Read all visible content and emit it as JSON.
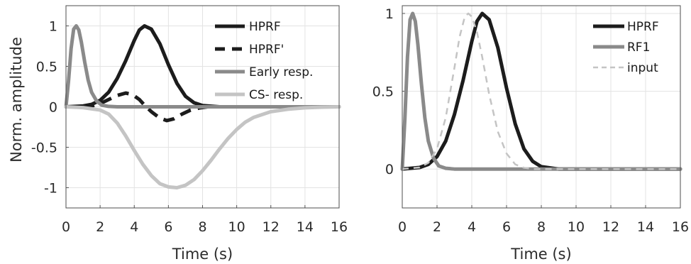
{
  "chart_data": [
    {
      "type": "line",
      "xlabel": "Time (s)",
      "ylabel": "Norm. amplitude",
      "xlim": [
        0,
        16
      ],
      "ylim": [
        -1.25,
        1.25
      ],
      "xticks": [
        "0",
        "2",
        "4",
        "6",
        "8",
        "10",
        "12",
        "14",
        "16"
      ],
      "yticks": [
        "-1",
        "-0.5",
        "0",
        "0.5",
        "1"
      ],
      "grid": true,
      "legend_position": "top-right",
      "series": [
        {
          "name": "HPRF",
          "color": "#1c1c1c",
          "dash": "solid",
          "x": [
            0,
            1,
            1.5,
            2,
            2.5,
            3,
            3.5,
            4,
            4.3,
            4.6,
            5,
            5.5,
            6,
            6.5,
            7,
            7.5,
            8,
            9,
            10,
            16
          ],
          "y": [
            0,
            0.01,
            0.03,
            0.08,
            0.18,
            0.35,
            0.57,
            0.82,
            0.95,
            1.0,
            0.96,
            0.78,
            0.52,
            0.29,
            0.13,
            0.05,
            0.015,
            0,
            0,
            0
          ]
        },
        {
          "name": "HPRF'",
          "color": "#1c1c1c",
          "dash": "dashed",
          "x": [
            1.0,
            1.5,
            2,
            2.5,
            3,
            3.5,
            3.9,
            4.3,
            4.6,
            5,
            5.5,
            5.9,
            6.3,
            6.8,
            7.3,
            7.8,
            8.3,
            9,
            10
          ],
          "y": [
            0.0,
            0.01,
            0.04,
            0.09,
            0.14,
            0.17,
            0.15,
            0.09,
            0.02,
            -0.06,
            -0.14,
            -0.17,
            -0.15,
            -0.09,
            -0.04,
            -0.015,
            0,
            0,
            0
          ]
        },
        {
          "name": "Early resp.",
          "color": "#8a8a8a",
          "dash": "solid",
          "x": [
            0,
            0.15,
            0.3,
            0.45,
            0.6,
            0.75,
            0.9,
            1.1,
            1.3,
            1.5,
            1.8,
            2.1,
            2.5,
            3,
            4,
            16
          ],
          "y": [
            0,
            0.32,
            0.72,
            0.96,
            1.0,
            0.95,
            0.8,
            0.55,
            0.33,
            0.18,
            0.07,
            0.02,
            0.005,
            0,
            0,
            0
          ]
        },
        {
          "name": "CS- resp.",
          "color": "#c4c4c4",
          "dash": "solid",
          "x": [
            0,
            1,
            2,
            2.5,
            3,
            3.5,
            4,
            4.5,
            5,
            5.5,
            6,
            6.5,
            7,
            7.5,
            8,
            8.5,
            9,
            9.5,
            10,
            10.5,
            11,
            12,
            13,
            14,
            15,
            16
          ],
          "y": [
            0,
            -0.01,
            -0.04,
            -0.09,
            -0.2,
            -0.36,
            -0.54,
            -0.71,
            -0.85,
            -0.95,
            -0.99,
            -1.0,
            -0.97,
            -0.9,
            -0.79,
            -0.66,
            -0.52,
            -0.39,
            -0.28,
            -0.19,
            -0.13,
            -0.06,
            -0.03,
            -0.012,
            -0.004,
            0
          ]
        }
      ]
    },
    {
      "type": "line",
      "xlabel": "Time (s)",
      "ylabel": "",
      "xlim": [
        0,
        16
      ],
      "ylim": [
        -0.25,
        1.05
      ],
      "xticks": [
        "0",
        "2",
        "4",
        "6",
        "8",
        "10",
        "12",
        "14",
        "16"
      ],
      "yticks": [
        "0",
        "0.5",
        "1"
      ],
      "grid": true,
      "legend_position": "top-right",
      "series": [
        {
          "name": "HPRF",
          "color": "#1c1c1c",
          "dash": "solid",
          "x": [
            0,
            1,
            1.5,
            2,
            2.5,
            3,
            3.5,
            4,
            4.3,
            4.6,
            5,
            5.5,
            6,
            6.5,
            7,
            7.5,
            8,
            9,
            10,
            16
          ],
          "y": [
            0,
            0.01,
            0.03,
            0.08,
            0.18,
            0.35,
            0.57,
            0.82,
            0.95,
            1.0,
            0.96,
            0.78,
            0.52,
            0.29,
            0.13,
            0.05,
            0.015,
            0,
            0,
            0
          ]
        },
        {
          "name": "RF1",
          "color": "#8a8a8a",
          "dash": "solid",
          "x": [
            0,
            0.15,
            0.3,
            0.45,
            0.6,
            0.75,
            0.9,
            1.1,
            1.3,
            1.5,
            1.8,
            2.1,
            2.5,
            3,
            4,
            16
          ],
          "y": [
            0,
            0.32,
            0.72,
            0.96,
            1.0,
            0.95,
            0.8,
            0.55,
            0.33,
            0.18,
            0.07,
            0.02,
            0.005,
            0,
            0,
            0
          ]
        },
        {
          "name": "input",
          "color": "#c4c4c4",
          "dash": "dashed",
          "x": [
            0,
            1,
            1.5,
            2,
            2.5,
            3,
            3.3,
            3.6,
            3.8,
            4.0,
            4.3,
            4.6,
            5,
            5.5,
            6,
            6.5,
            7,
            7.5,
            8,
            16
          ],
          "y": [
            0,
            0.01,
            0.04,
            0.13,
            0.33,
            0.65,
            0.85,
            0.98,
            1.0,
            0.98,
            0.88,
            0.72,
            0.48,
            0.24,
            0.1,
            0.03,
            0.008,
            0,
            0,
            0
          ]
        }
      ]
    }
  ]
}
